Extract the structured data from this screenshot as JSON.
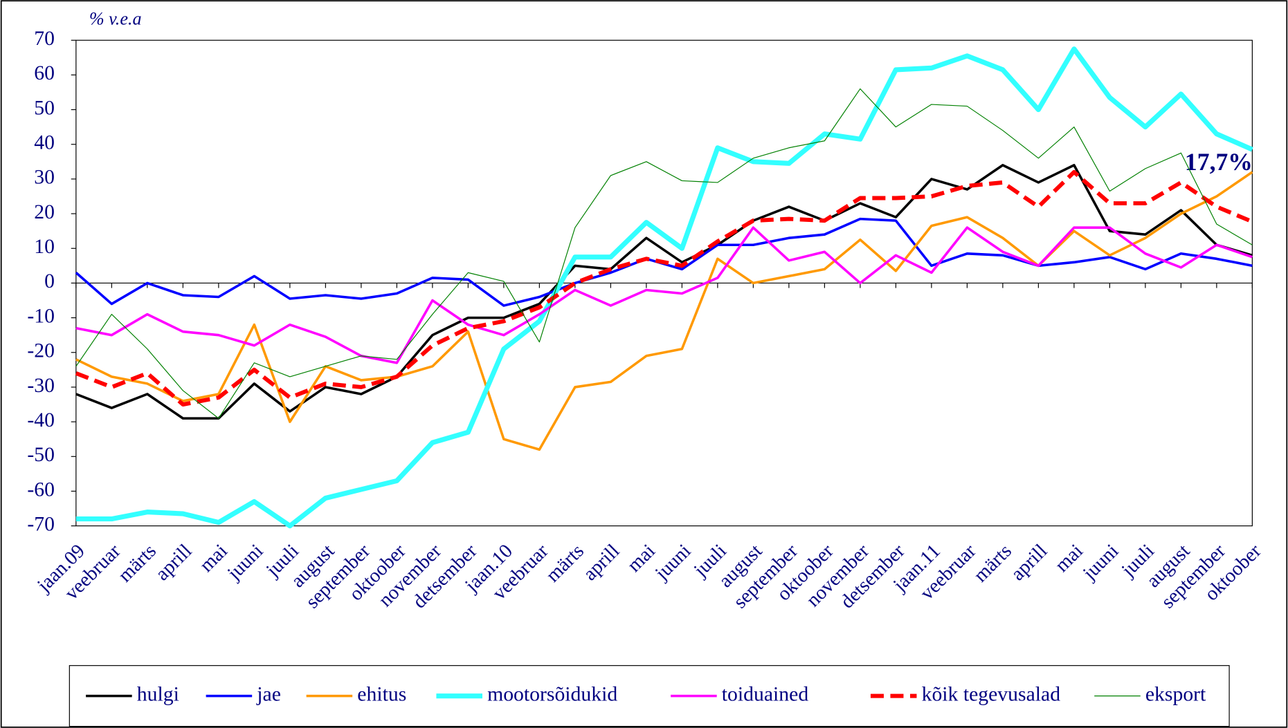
{
  "chart_data": {
    "type": "line",
    "y_axis_label": "% v.e.a",
    "annotation": "17,7%",
    "categories": [
      "jaan.09",
      "veebruar",
      "märts",
      "aprill",
      "mai",
      "juuni",
      "juuli",
      "august",
      "september",
      "oktoober",
      "november",
      "detsember",
      "jaan.10",
      "veebruar",
      "märts",
      "aprill",
      "mai",
      "juuni",
      "juuli",
      "august",
      "september",
      "oktoober",
      "november",
      "detsember",
      "jaan.11",
      "veebruar",
      "märts",
      "aprill",
      "mai",
      "juuni",
      "juuli",
      "august",
      "september",
      "oktoober"
    ],
    "ylim": [
      -70,
      70
    ],
    "yticks": [
      70,
      60,
      50,
      40,
      30,
      20,
      10,
      0,
      -10,
      -20,
      -30,
      -40,
      -50,
      -60,
      -70
    ],
    "series": [
      {
        "name": "hulgi",
        "color": "#000000",
        "values": [
          -32,
          -36,
          -32,
          -39,
          -39,
          -29,
          -37,
          -30,
          -32,
          -27,
          -15,
          -10,
          -10,
          -6,
          5,
          4,
          13,
          6,
          11,
          18,
          22,
          18,
          23,
          19,
          30,
          27,
          34,
          29,
          34,
          15,
          14,
          21,
          11,
          8
        ]
      },
      {
        "name": "jae",
        "color": "#0000ff",
        "values": [
          3,
          -6,
          0,
          -3.5,
          -4,
          2,
          -4.5,
          -3.5,
          -4.5,
          -3,
          1.5,
          1,
          -6.5,
          -4,
          0,
          3,
          7,
          4,
          11,
          11,
          13,
          14,
          18.5,
          18,
          5,
          8.5,
          8,
          5,
          6,
          7.5,
          4,
          8.5,
          7,
          5
        ]
      },
      {
        "name": "ehitus",
        "color": "#ff9900",
        "values": [
          -22,
          -27,
          -29,
          -34,
          -32,
          -12,
          -40,
          -24,
          -28,
          -27,
          -24,
          -14,
          -45,
          -48,
          -30,
          -28.5,
          -21,
          -19,
          7,
          0,
          2,
          4,
          12.5,
          3.5,
          16.5,
          19,
          13,
          5,
          15,
          8,
          13,
          20,
          25,
          32
        ]
      },
      {
        "name": "mootorsõidukid",
        "color": "#33ffff",
        "values": [
          -68,
          -68,
          -66,
          -66.5,
          -69,
          -63,
          -70,
          -62,
          -59.5,
          -57,
          -46,
          -43,
          -19,
          -11,
          7.5,
          7.5,
          17.5,
          10,
          39,
          35,
          34.5,
          43,
          41.5,
          61.5,
          62,
          65.5,
          61.5,
          50,
          67.5,
          53.5,
          45,
          54.5,
          43,
          38.5
        ]
      },
      {
        "name": "toiduained",
        "color": "#ff00ff",
        "values": [
          -13,
          -15,
          -9,
          -14,
          -15,
          -18,
          -12,
          -15.5,
          -21,
          -23,
          -5,
          -12,
          -15,
          -9,
          -2,
          -6.5,
          -2,
          -3,
          1.5,
          16,
          6.5,
          9,
          0,
          8,
          3,
          16,
          9,
          5,
          16,
          16,
          8.5,
          4.5,
          11,
          7.5
        ]
      },
      {
        "name": "kõik tegevusalad",
        "color": "#ff0000",
        "dashed": true,
        "values": [
          -26,
          -30,
          -26,
          -35,
          -33,
          -25,
          -33,
          -29,
          -30,
          -27,
          -18,
          -13,
          -11,
          -7,
          0,
          4,
          7,
          5,
          12,
          18,
          18.5,
          18,
          24.5,
          24.5,
          25,
          28,
          29,
          22,
          32,
          23,
          23,
          29,
          22,
          17.7
        ]
      },
      {
        "name": "eksport",
        "color": "#008000",
        "values": [
          -24,
          -9,
          -19,
          -31,
          -39,
          -23,
          -27,
          -24,
          -21,
          -22,
          -9,
          3,
          0.5,
          -17,
          16,
          31,
          35,
          29.5,
          29,
          36,
          39,
          41,
          56,
          45,
          51.5,
          51,
          44,
          36,
          45,
          26.5,
          33,
          37.5,
          17,
          11
        ]
      }
    ]
  }
}
